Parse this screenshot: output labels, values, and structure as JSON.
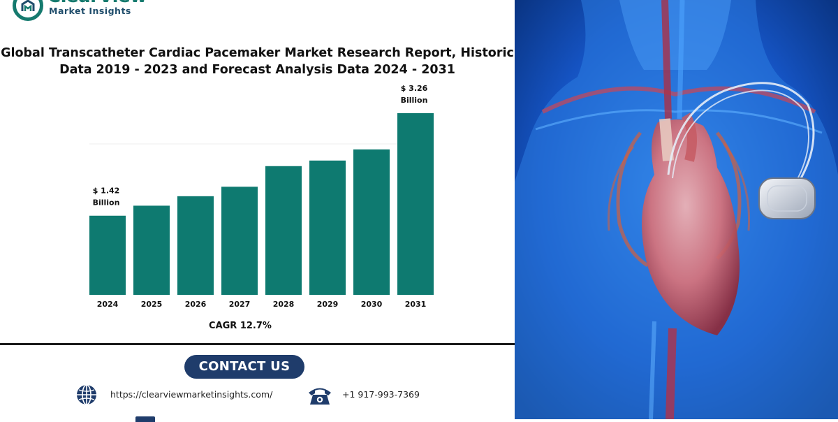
{
  "brand": {
    "name": "ClearView",
    "tagline": "Market Insights"
  },
  "report_title": {
    "line1": "Global Transcatheter Cardiac Pacemaker Market Research Report, Historic",
    "line2": "Data 2019 - 2023 and Forecast Analysis Data 2024 - 2031"
  },
  "chart_data": {
    "type": "bar",
    "title": "Global Transcatheter Cardiac Pacemaker Market Research Report, Historic Data 2019 - 2023 and Forecast Analysis Data 2024 - 2031",
    "categories": [
      "2024",
      "2025",
      "2026",
      "2027",
      "2028",
      "2029",
      "2030",
      "2031"
    ],
    "values": [
      1.42,
      1.6,
      1.77,
      1.94,
      2.31,
      2.41,
      2.61,
      3.26
    ],
    "unit": "Billion",
    "data_labels": [
      {
        "category": "2024",
        "line1": "$ 1.42",
        "line2": "Billion"
      },
      {
        "category": "2031",
        "line1": "$ 3.26",
        "line2": "Billion"
      }
    ],
    "xlabel": "",
    "ylabel": "",
    "ylim": [
      0,
      3.3
    ],
    "grid": false,
    "bar_color": "#0e7a70",
    "annotation": "CAGR 12.7%"
  },
  "contact": {
    "heading": "CONTACT US",
    "website": "https://clearviewmarketinsights.com/",
    "phone": "+1 917-993-7369"
  },
  "colors": {
    "accent": "#157a6e",
    "navy": "#1f3c6b",
    "photo_bg": "#0d3f9a"
  },
  "icons": {
    "website": "globe-icon",
    "phone": "telephone-icon",
    "email": "mail-icon"
  }
}
